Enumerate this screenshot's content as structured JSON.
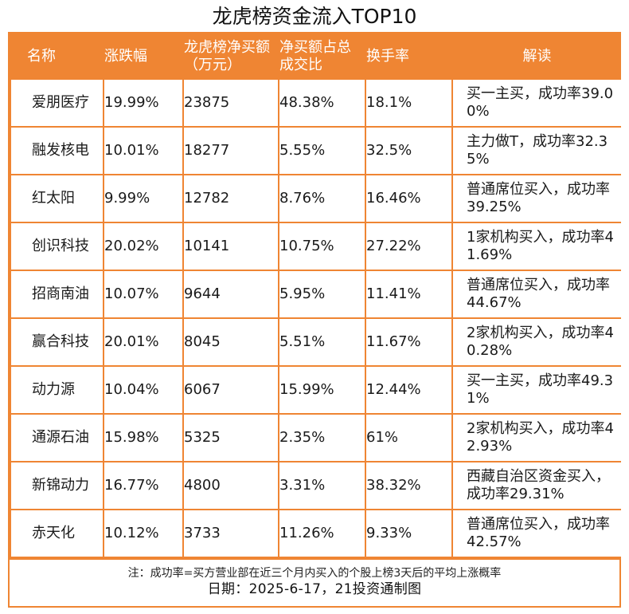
{
  "title": "龙虎榜资金流入TOP10",
  "colors": {
    "accent": "#ef8533",
    "header_text": "#ffffff",
    "cell_bg": "#ffffff"
  },
  "chart_data": {
    "type": "table",
    "title": "龙虎榜资金流入TOP10",
    "columns": [
      "名称",
      "涨跌幅",
      "龙虎榜净买额（万元）",
      "净买额占总成交比",
      "换手率",
      "解读"
    ],
    "rows": [
      [
        "爱朋医疗",
        "19.99%",
        "23875",
        "48.38%",
        "18.1%",
        "买一主买，成功率39.00%"
      ],
      [
        "融发核电",
        "10.01%",
        "18277",
        "5.55%",
        "32.5%",
        "主力做T，成功率32.35%"
      ],
      [
        "红太阳",
        "9.99%",
        "12782",
        "8.76%",
        "16.46%",
        "普通席位买入，成功率39.25%"
      ],
      [
        "创识科技",
        "20.02%",
        "10141",
        "10.75%",
        "27.22%",
        "1家机构买入，成功率41.69%"
      ],
      [
        "招商南油",
        "10.07%",
        "9644",
        "5.95%",
        "11.41%",
        "普通席位买入，成功率44.67%"
      ],
      [
        "赢合科技",
        "20.01%",
        "8045",
        "5.51%",
        "11.67%",
        "2家机构买入，成功率40.28%"
      ],
      [
        "动力源",
        "10.04%",
        "6067",
        "15.99%",
        "12.44%",
        "买一主买，成功率49.31%"
      ],
      [
        "通源石油",
        "15.98%",
        "5325",
        "2.35%",
        "61%",
        "2家机构买入，成功率42.93%"
      ],
      [
        "新锦动力",
        "16.77%",
        "4800",
        "3.31%",
        "38.32%",
        "西藏自治区资金买入，成功率29.31%"
      ],
      [
        "赤天化",
        "10.12%",
        "3733",
        "11.26%",
        "9.33%",
        "普通席位买入，成功率42.57%"
      ]
    ]
  },
  "footer": {
    "note": "注：成功率=买方营业部在近三个月内买入的个股上榜3天后的平均上涨概率",
    "date_line": "日期：2025-6-17，21投资通制图"
  }
}
